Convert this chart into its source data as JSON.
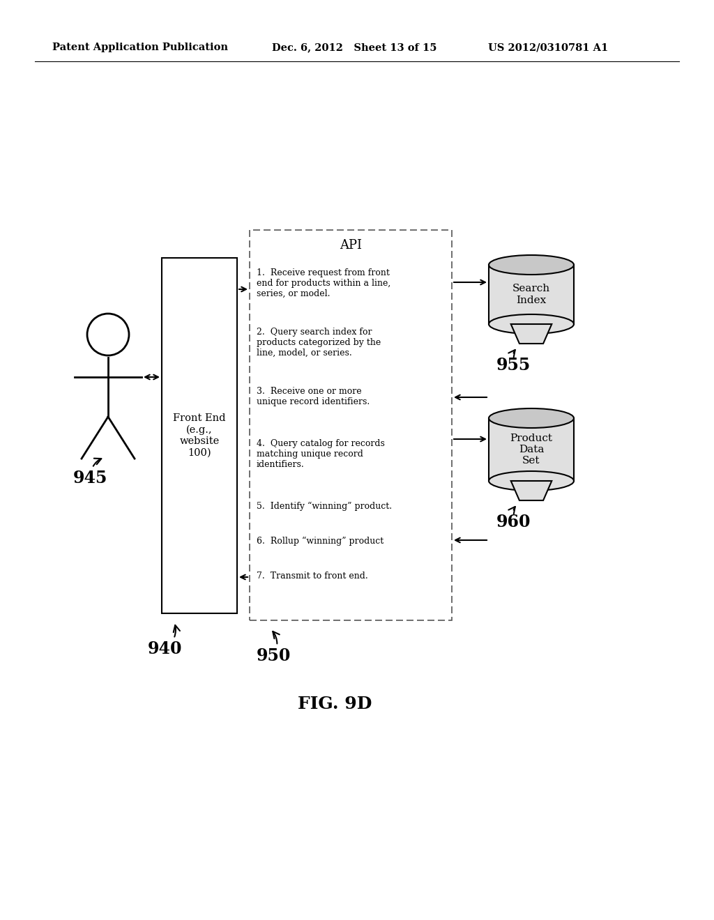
{
  "bg_color": "#ffffff",
  "header_left": "Patent Application Publication",
  "header_mid": "Dec. 6, 2012   Sheet 13 of 15",
  "header_right": "US 2012/0310781 A1",
  "fig_label": "FIG. 9D",
  "front_end_label": "Front End\n(e.g.,\nwebsite\n100)",
  "front_end_num": "940",
  "api_title": "API",
  "api_steps": [
    "1.  Receive request from front\nend for products within a line,\nseries, or model.",
    "2.  Query search index for\nproducts categorized by the\nline, model, or series.",
    "3.  Receive one or more\nunique record identifiers.",
    "4.  Query catalog for records\nmatching unique record\nidentifiers.",
    "5.  Identify “winning” product.",
    "6.  Rollup “winning” product",
    "7.  Transmit to front end."
  ],
  "api_num": "950",
  "search_index_label": "Search\nIndex",
  "search_index_num": "955",
  "product_data_label": "Product\nData\nSet",
  "product_data_num": "960",
  "person_num": "945"
}
